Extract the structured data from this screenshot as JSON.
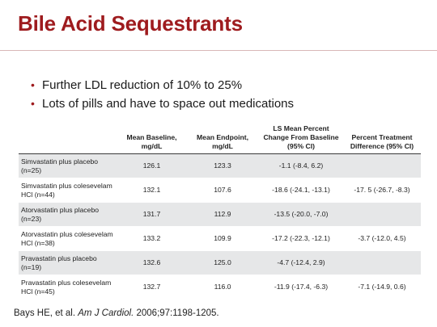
{
  "title": "Bile Acid Sequestrants",
  "bullets": [
    "Further LDL reduction of 10% to 25%",
    "Lots of pills and have to space out medications"
  ],
  "table": {
    "headers": [
      "",
      "Mean Baseline, mg/dL",
      "Mean Endpoint, mg/dL",
      "LS Mean Percent Change From Baseline (95% CI)",
      "Percent Treatment Difference (95% CI)"
    ],
    "rows": [
      {
        "label": "Simvastatin plus placebo (n=25)",
        "baseline": "126.1",
        "endpoint": "123.3",
        "change": "-1.1 (-8.4, 6.2)",
        "diff": ""
      },
      {
        "label": "Simvastatin plus colesevelam HCl (n=44)",
        "baseline": "132.1",
        "endpoint": "107.6",
        "change": "-18.6 (-24.1, -13.1)",
        "diff": "-17. 5 (-26.7, -8.3)"
      },
      {
        "label": "Atorvastatin plus placebo (n=23)",
        "baseline": "131.7",
        "endpoint": "112.9",
        "change": "-13.5 (-20.0, -7.0)",
        "diff": ""
      },
      {
        "label": "Atorvastatin plus colesevelam HCl (n=38)",
        "baseline": "133.2",
        "endpoint": "109.9",
        "change": "-17.2 (-22.3, -12.1)",
        "diff": "-3.7 (-12.0, 4.5)"
      },
      {
        "label": "Pravastatin plus placebo (n=19)",
        "baseline": "132.6",
        "endpoint": "125.0",
        "change": "-4.7 (-12.4, 2.9)",
        "diff": ""
      },
      {
        "label": "Pravastatin plus colesevelam HCl (n=45)",
        "baseline": "132.7",
        "endpoint": "116.0",
        "change": "-11.9 (-17.4, -6.3)",
        "diff": "-7.1 (-14.9, 0.6)"
      }
    ]
  },
  "citation": {
    "authors": "Bays HE, et al. ",
    "journal": "Am J Cardiol.",
    "details": " 2006;97:1198-1205."
  },
  "colors": {
    "accent": "#9e1b1e",
    "row_shade": "#e6e7e8"
  }
}
